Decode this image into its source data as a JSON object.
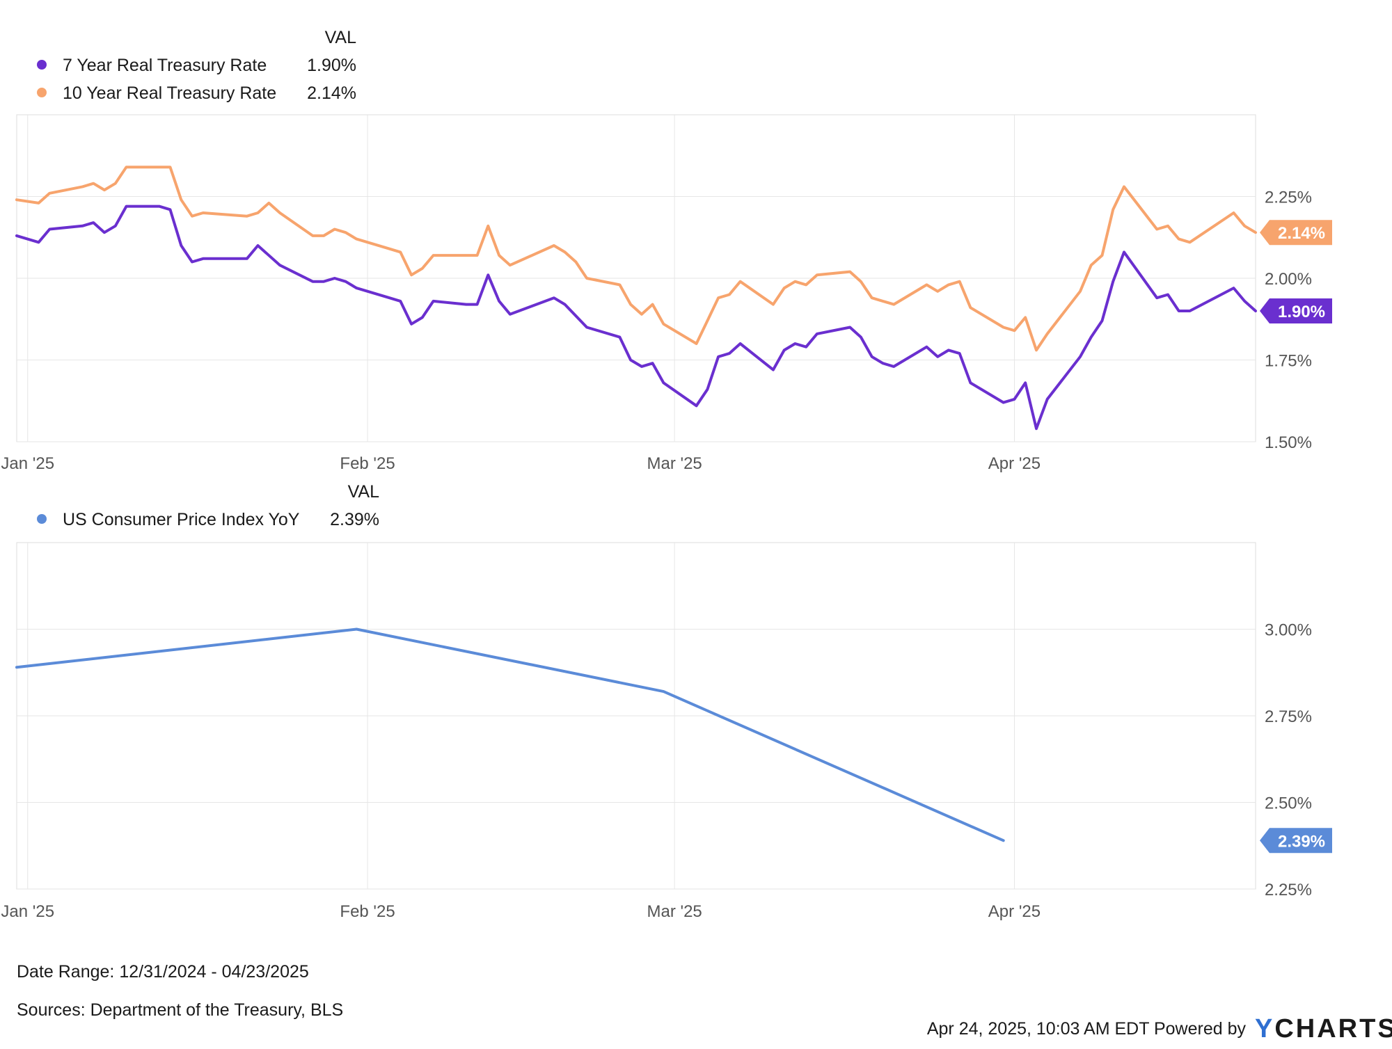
{
  "chart_data": [
    {
      "type": "line",
      "legend": {
        "value_header": "VAL",
        "entries": [
          {
            "name": "7 Year Real Treasury Rate",
            "value": "1.90%",
            "color": "#6a2fcf"
          },
          {
            "name": "10 Year Real Treasury Rate",
            "value": "2.14%",
            "color": "#f7a46d"
          }
        ]
      },
      "xlim": [
        "2024-12-31",
        "2025-04-23"
      ],
      "ylim": [
        1.5,
        2.5
      ],
      "y_ticks": [
        {
          "value": 1.5,
          "label": "1.50%"
        },
        {
          "value": 1.75,
          "label": "1.75%"
        },
        {
          "value": 2.0,
          "label": "2.00%"
        },
        {
          "value": 2.25,
          "label": "2.25%"
        }
      ],
      "x_ticks": [
        {
          "date": "2025-01-01",
          "label": "Jan '25"
        },
        {
          "date": "2025-02-01",
          "label": "Feb '25"
        },
        {
          "date": "2025-03-01",
          "label": "Mar '25"
        },
        {
          "date": "2025-04-01",
          "label": "Apr '25"
        }
      ],
      "grid": true,
      "series": [
        {
          "name": "7 Year Real Treasury Rate",
          "color": "#6a2fcf",
          "last_label": "1.90%",
          "points": [
            [
              "2024-12-31",
              2.13
            ],
            [
              "2025-01-02",
              2.11
            ],
            [
              "2025-01-03",
              2.15
            ],
            [
              "2025-01-06",
              2.16
            ],
            [
              "2025-01-07",
              2.17
            ],
            [
              "2025-01-08",
              2.14
            ],
            [
              "2025-01-09",
              2.16
            ],
            [
              "2025-01-10",
              2.22
            ],
            [
              "2025-01-13",
              2.22
            ],
            [
              "2025-01-14",
              2.21
            ],
            [
              "2025-01-15",
              2.1
            ],
            [
              "2025-01-16",
              2.05
            ],
            [
              "2025-01-17",
              2.06
            ],
            [
              "2025-01-21",
              2.06
            ],
            [
              "2025-01-22",
              2.1
            ],
            [
              "2025-01-24",
              2.04
            ],
            [
              "2025-01-27",
              1.99
            ],
            [
              "2025-01-28",
              1.99
            ],
            [
              "2025-01-29",
              2.0
            ],
            [
              "2025-01-30",
              1.99
            ],
            [
              "2025-01-31",
              1.97
            ],
            [
              "2025-02-03",
              1.94
            ],
            [
              "2025-02-04",
              1.93
            ],
            [
              "2025-02-05",
              1.86
            ],
            [
              "2025-02-06",
              1.88
            ],
            [
              "2025-02-07",
              1.93
            ],
            [
              "2025-02-10",
              1.92
            ],
            [
              "2025-02-11",
              1.92
            ],
            [
              "2025-02-12",
              2.01
            ],
            [
              "2025-02-13",
              1.93
            ],
            [
              "2025-02-14",
              1.89
            ],
            [
              "2025-02-18",
              1.94
            ],
            [
              "2025-02-19",
              1.92
            ],
            [
              "2025-02-21",
              1.85
            ],
            [
              "2025-02-24",
              1.82
            ],
            [
              "2025-02-25",
              1.75
            ],
            [
              "2025-02-26",
              1.73
            ],
            [
              "2025-02-27",
              1.74
            ],
            [
              "2025-02-28",
              1.68
            ],
            [
              "2025-03-03",
              1.61
            ],
            [
              "2025-03-04",
              1.66
            ],
            [
              "2025-03-05",
              1.76
            ],
            [
              "2025-03-06",
              1.77
            ],
            [
              "2025-03-07",
              1.8
            ],
            [
              "2025-03-10",
              1.72
            ],
            [
              "2025-03-11",
              1.78
            ],
            [
              "2025-03-12",
              1.8
            ],
            [
              "2025-03-13",
              1.79
            ],
            [
              "2025-03-14",
              1.83
            ],
            [
              "2025-03-17",
              1.85
            ],
            [
              "2025-03-18",
              1.82
            ],
            [
              "2025-03-19",
              1.76
            ],
            [
              "2025-03-20",
              1.74
            ],
            [
              "2025-03-21",
              1.73
            ],
            [
              "2025-03-24",
              1.79
            ],
            [
              "2025-03-25",
              1.76
            ],
            [
              "2025-03-26",
              1.78
            ],
            [
              "2025-03-27",
              1.77
            ],
            [
              "2025-03-28",
              1.68
            ],
            [
              "2025-03-31",
              1.62
            ],
            [
              "2025-04-01",
              1.63
            ],
            [
              "2025-04-02",
              1.68
            ],
            [
              "2025-04-03",
              1.54
            ],
            [
              "2025-04-04",
              1.63
            ],
            [
              "2025-04-07",
              1.76
            ],
            [
              "2025-04-08",
              1.82
            ],
            [
              "2025-04-09",
              1.87
            ],
            [
              "2025-04-10",
              1.99
            ],
            [
              "2025-04-11",
              2.08
            ],
            [
              "2025-04-14",
              1.94
            ],
            [
              "2025-04-15",
              1.95
            ],
            [
              "2025-04-16",
              1.9
            ],
            [
              "2025-04-17",
              1.9
            ],
            [
              "2025-04-21",
              1.97
            ],
            [
              "2025-04-22",
              1.93
            ],
            [
              "2025-04-23",
              1.9
            ]
          ]
        },
        {
          "name": "10 Year Real Treasury Rate",
          "color": "#f7a46d",
          "last_label": "2.14%",
          "points": [
            [
              "2024-12-31",
              2.24
            ],
            [
              "2025-01-02",
              2.23
            ],
            [
              "2025-01-03",
              2.26
            ],
            [
              "2025-01-06",
              2.28
            ],
            [
              "2025-01-07",
              2.29
            ],
            [
              "2025-01-08",
              2.27
            ],
            [
              "2025-01-09",
              2.29
            ],
            [
              "2025-01-10",
              2.34
            ],
            [
              "2025-01-13",
              2.34
            ],
            [
              "2025-01-14",
              2.34
            ],
            [
              "2025-01-15",
              2.24
            ],
            [
              "2025-01-16",
              2.19
            ],
            [
              "2025-01-17",
              2.2
            ],
            [
              "2025-01-21",
              2.19
            ],
            [
              "2025-01-22",
              2.2
            ],
            [
              "2025-01-23",
              2.23
            ],
            [
              "2025-01-24",
              2.2
            ],
            [
              "2025-01-27",
              2.13
            ],
            [
              "2025-01-28",
              2.13
            ],
            [
              "2025-01-29",
              2.15
            ],
            [
              "2025-01-30",
              2.14
            ],
            [
              "2025-01-31",
              2.12
            ],
            [
              "2025-02-03",
              2.09
            ],
            [
              "2025-02-04",
              2.08
            ],
            [
              "2025-02-05",
              2.01
            ],
            [
              "2025-02-06",
              2.03
            ],
            [
              "2025-02-07",
              2.07
            ],
            [
              "2025-02-10",
              2.07
            ],
            [
              "2025-02-11",
              2.07
            ],
            [
              "2025-02-12",
              2.16
            ],
            [
              "2025-02-13",
              2.07
            ],
            [
              "2025-02-14",
              2.04
            ],
            [
              "2025-02-18",
              2.1
            ],
            [
              "2025-02-19",
              2.08
            ],
            [
              "2025-02-20",
              2.05
            ],
            [
              "2025-02-21",
              2.0
            ],
            [
              "2025-02-24",
              1.98
            ],
            [
              "2025-02-25",
              1.92
            ],
            [
              "2025-02-26",
              1.89
            ],
            [
              "2025-02-27",
              1.92
            ],
            [
              "2025-02-28",
              1.86
            ],
            [
              "2025-03-03",
              1.8
            ],
            [
              "2025-03-04",
              1.87
            ],
            [
              "2025-03-05",
              1.94
            ],
            [
              "2025-03-06",
              1.95
            ],
            [
              "2025-03-07",
              1.99
            ],
            [
              "2025-03-10",
              1.92
            ],
            [
              "2025-03-11",
              1.97
            ],
            [
              "2025-03-12",
              1.99
            ],
            [
              "2025-03-13",
              1.98
            ],
            [
              "2025-03-14",
              2.01
            ],
            [
              "2025-03-17",
              2.02
            ],
            [
              "2025-03-18",
              1.99
            ],
            [
              "2025-03-19",
              1.94
            ],
            [
              "2025-03-20",
              1.93
            ],
            [
              "2025-03-21",
              1.92
            ],
            [
              "2025-03-24",
              1.98
            ],
            [
              "2025-03-25",
              1.96
            ],
            [
              "2025-03-26",
              1.98
            ],
            [
              "2025-03-27",
              1.99
            ],
            [
              "2025-03-28",
              1.91
            ],
            [
              "2025-03-31",
              1.85
            ],
            [
              "2025-04-01",
              1.84
            ],
            [
              "2025-04-02",
              1.88
            ],
            [
              "2025-04-03",
              1.78
            ],
            [
              "2025-04-04",
              1.83
            ],
            [
              "2025-04-07",
              1.96
            ],
            [
              "2025-04-08",
              2.04
            ],
            [
              "2025-04-09",
              2.07
            ],
            [
              "2025-04-10",
              2.21
            ],
            [
              "2025-04-11",
              2.28
            ],
            [
              "2025-04-14",
              2.15
            ],
            [
              "2025-04-15",
              2.16
            ],
            [
              "2025-04-16",
              2.12
            ],
            [
              "2025-04-17",
              2.11
            ],
            [
              "2025-04-21",
              2.2
            ],
            [
              "2025-04-22",
              2.16
            ],
            [
              "2025-04-23",
              2.14
            ]
          ]
        }
      ]
    },
    {
      "type": "line",
      "legend": {
        "value_header": "VAL",
        "entries": [
          {
            "name": "US Consumer Price Index YoY",
            "value": "2.39%",
            "color": "#5b8bd8"
          }
        ]
      },
      "xlim": [
        "2024-12-31",
        "2025-04-23"
      ],
      "ylim": [
        2.25,
        3.25
      ],
      "y_ticks": [
        {
          "value": 2.25,
          "label": "2.25%"
        },
        {
          "value": 2.5,
          "label": "2.50%"
        },
        {
          "value": 2.75,
          "label": "2.75%"
        },
        {
          "value": 3.0,
          "label": "3.00%"
        }
      ],
      "x_ticks": [
        {
          "date": "2025-01-01",
          "label": "Jan '25"
        },
        {
          "date": "2025-02-01",
          "label": "Feb '25"
        },
        {
          "date": "2025-03-01",
          "label": "Mar '25"
        },
        {
          "date": "2025-04-01",
          "label": "Apr '25"
        }
      ],
      "grid": true,
      "series": [
        {
          "name": "US Consumer Price Index YoY",
          "color": "#5b8bd8",
          "last_label": "2.39%",
          "points": [
            [
              "2024-12-31",
              2.89
            ],
            [
              "2025-01-31",
              3.0
            ],
            [
              "2025-02-28",
              2.82
            ],
            [
              "2025-03-31",
              2.39
            ]
          ]
        }
      ]
    }
  ],
  "footer": {
    "date_range": "Date Range: 12/31/2024 - 04/23/2025",
    "sources": "Sources: Department of the Treasury, BLS",
    "timestamp": "Apr 24, 2025, 10:03 AM EDT Powered by",
    "brand_first": "Y",
    "brand_rest": "CHARTS"
  },
  "colors": {
    "grid": "#e6e6e6",
    "axis": "#cccccc",
    "brand_accent": "#2f6fd1"
  }
}
